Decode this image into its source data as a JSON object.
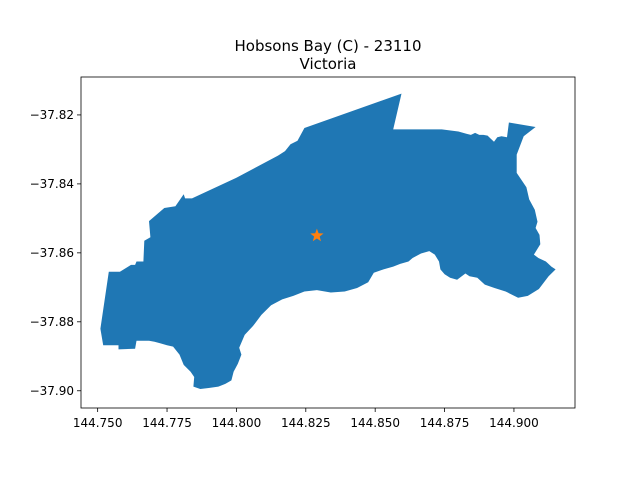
{
  "figure": {
    "title_line1": "Hobsons Bay (C) - 23110",
    "title_line2": "Victoria"
  },
  "colors": {
    "region_fill": "#1f77b4",
    "marker": "#ff7f0e",
    "background": "#ffffff"
  },
  "chart_data": {
    "type": "map",
    "region_name": "Hobsons Bay (C)",
    "region_code": "23110",
    "state": "Victoria",
    "xlim": [
      144.744,
      144.922
    ],
    "ylim": [
      -37.905,
      -37.809
    ],
    "x_ticks": [
      144.75,
      144.775,
      144.8,
      144.825,
      144.85,
      144.875,
      144.9
    ],
    "x_tick_labels": [
      "144.750",
      "144.775",
      "144.800",
      "144.825",
      "144.850",
      "144.875",
      "144.900"
    ],
    "y_ticks": [
      -37.82,
      -37.84,
      -37.86,
      -37.88,
      -37.9
    ],
    "y_tick_labels": [
      "−37.82",
      "−37.84",
      "−37.86",
      "−37.88",
      "−37.90"
    ],
    "centroid_marker": {
      "lon": 144.829,
      "lat": -37.855,
      "symbol": "star"
    },
    "boundary": [
      [
        144.751,
        -37.882
      ],
      [
        144.754,
        -37.8655
      ],
      [
        144.757,
        -37.8655
      ],
      [
        144.758,
        -37.8655
      ],
      [
        144.762,
        -37.8635
      ],
      [
        144.7635,
        -37.8635
      ],
      [
        144.764,
        -37.8625
      ],
      [
        144.7665,
        -37.8625
      ],
      [
        144.7668,
        -37.8565
      ],
      [
        144.769,
        -37.8555
      ],
      [
        144.7685,
        -37.8508
      ],
      [
        144.774,
        -37.847
      ],
      [
        144.778,
        -37.8465
      ],
      [
        144.781,
        -37.843
      ],
      [
        144.7815,
        -37.8442
      ],
      [
        144.784,
        -37.8442
      ],
      [
        144.8,
        -37.8382
      ],
      [
        144.815,
        -37.8318
      ],
      [
        144.8175,
        -37.8305
      ],
      [
        144.8195,
        -37.8285
      ],
      [
        144.822,
        -37.8275
      ],
      [
        144.8245,
        -37.8238
      ],
      [
        144.8595,
        -37.8138
      ],
      [
        144.8565,
        -37.8242
      ],
      [
        144.866,
        -37.8242
      ],
      [
        144.874,
        -37.8242
      ],
      [
        144.88,
        -37.8248
      ],
      [
        144.883,
        -37.8255
      ],
      [
        144.8845,
        -37.8258
      ],
      [
        144.886,
        -37.8252
      ],
      [
        144.8875,
        -37.8258
      ],
      [
        144.889,
        -37.8258
      ],
      [
        144.8905,
        -37.826
      ],
      [
        144.8915,
        -37.8268
      ],
      [
        144.8928,
        -37.8278
      ],
      [
        144.894,
        -37.8265
      ],
      [
        144.8955,
        -37.8262
      ],
      [
        144.8975,
        -37.8265
      ],
      [
        144.8982,
        -37.8222
      ],
      [
        144.9078,
        -37.8235
      ],
      [
        144.9035,
        -37.8262
      ],
      [
        144.901,
        -37.8315
      ],
      [
        144.901,
        -37.8368
      ],
      [
        144.9045,
        -37.841
      ],
      [
        144.9055,
        -37.8445
      ],
      [
        144.9075,
        -37.8475
      ],
      [
        144.9085,
        -37.851
      ],
      [
        144.9078,
        -37.8528
      ],
      [
        144.9092,
        -37.8548
      ],
      [
        144.9095,
        -37.8575
      ],
      [
        144.9072,
        -37.8605
      ],
      [
        144.9088,
        -37.8615
      ],
      [
        144.9115,
        -37.8625
      ],
      [
        144.9135,
        -37.864
      ],
      [
        144.915,
        -37.8648
      ],
      [
        144.9125,
        -37.8668
      ],
      [
        144.909,
        -37.8705
      ],
      [
        144.905,
        -37.8725
      ],
      [
        144.9015,
        -37.873
      ],
      [
        144.897,
        -37.8712
      ],
      [
        144.893,
        -37.8702
      ],
      [
        144.8895,
        -37.8692
      ],
      [
        144.8868,
        -37.8672
      ],
      [
        144.884,
        -37.8668
      ],
      [
        144.8825,
        -37.866
      ],
      [
        144.8795,
        -37.8678
      ],
      [
        144.877,
        -37.8672
      ],
      [
        144.875,
        -37.8662
      ],
      [
        144.8735,
        -37.8648
      ],
      [
        144.873,
        -37.8625
      ],
      [
        144.8715,
        -37.8605
      ],
      [
        144.8695,
        -37.8595
      ],
      [
        144.8665,
        -37.8602
      ],
      [
        144.8635,
        -37.8615
      ],
      [
        144.862,
        -37.8625
      ],
      [
        144.859,
        -37.8632
      ],
      [
        144.8565,
        -37.864
      ],
      [
        144.853,
        -37.8648
      ],
      [
        144.8495,
        -37.8658
      ],
      [
        144.8475,
        -37.8685
      ],
      [
        144.8435,
        -37.8702
      ],
      [
        144.839,
        -37.8712
      ],
      [
        144.834,
        -37.8715
      ],
      [
        144.829,
        -37.8708
      ],
      [
        144.8245,
        -37.8712
      ],
      [
        144.8205,
        -37.8725
      ],
      [
        144.8165,
        -37.8735
      ],
      [
        144.8125,
        -37.8752
      ],
      [
        144.809,
        -37.878
      ],
      [
        144.806,
        -37.8812
      ],
      [
        144.803,
        -37.8838
      ],
      [
        144.801,
        -37.8875
      ],
      [
        144.8018,
        -37.8895
      ],
      [
        144.8005,
        -37.8922
      ],
      [
        144.799,
        -37.8945
      ],
      [
        144.7982,
        -37.897
      ],
      [
        144.796,
        -37.898
      ],
      [
        144.7935,
        -37.8988
      ],
      [
        144.79,
        -37.8992
      ],
      [
        144.787,
        -37.8995
      ],
      [
        144.7845,
        -37.8988
      ],
      [
        144.7848,
        -37.896
      ],
      [
        144.7835,
        -37.8945
      ],
      [
        144.781,
        -37.8925
      ],
      [
        144.7795,
        -37.8895
      ],
      [
        144.7772,
        -37.8872
      ],
      [
        144.775,
        -37.8868
      ],
      [
        144.7725,
        -37.8862
      ],
      [
        144.7705,
        -37.8858
      ],
      [
        144.7685,
        -37.8855
      ],
      [
        144.7675,
        -37.8855
      ],
      [
        144.764,
        -37.8855
      ],
      [
        144.7635,
        -37.8878
      ],
      [
        144.7575,
        -37.888
      ],
      [
        144.7575,
        -37.8868
      ],
      [
        144.752,
        -37.8868
      ],
      [
        144.751,
        -37.882
      ]
    ]
  }
}
